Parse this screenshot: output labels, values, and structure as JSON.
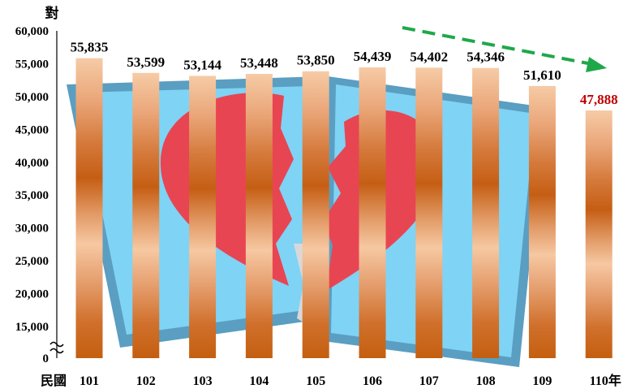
{
  "chart_data": {
    "type": "bar",
    "unit_label": "對",
    "x_prefix": "民國",
    "categories": [
      "101",
      "102",
      "103",
      "104",
      "105",
      "106",
      "107",
      "108",
      "109",
      "110年"
    ],
    "values": [
      55835,
      53599,
      53144,
      53448,
      53850,
      54439,
      54402,
      54346,
      51610,
      47888
    ],
    "data_labels": [
      "55,835",
      "53,599",
      "53,144",
      "53,448",
      "53,850",
      "54,439",
      "54,402",
      "54,346",
      "51,610",
      "47,888"
    ],
    "highlight_index": 9,
    "y_ticks": [
      "0",
      "15,000",
      "20,000",
      "25,000",
      "30,000",
      "35,000",
      "40,000",
      "45,000",
      "50,000",
      "55,000",
      "60,000"
    ],
    "ylim": [
      10000,
      60000
    ],
    "axis_break": true,
    "trend_arrow": "dashed green arrow pointing down-right",
    "grid": false,
    "colors": {
      "bar_light": "#f5c9a4",
      "bar_dark": "#c45f10",
      "highlight_label": "#c00000",
      "trend_arrow": "#1fa84a",
      "photo_bg": "#7fd3f5",
      "photo_frame": "#5aa0c4",
      "heart": "#e84552"
    },
    "background_image": "broken-heart-photo"
  }
}
